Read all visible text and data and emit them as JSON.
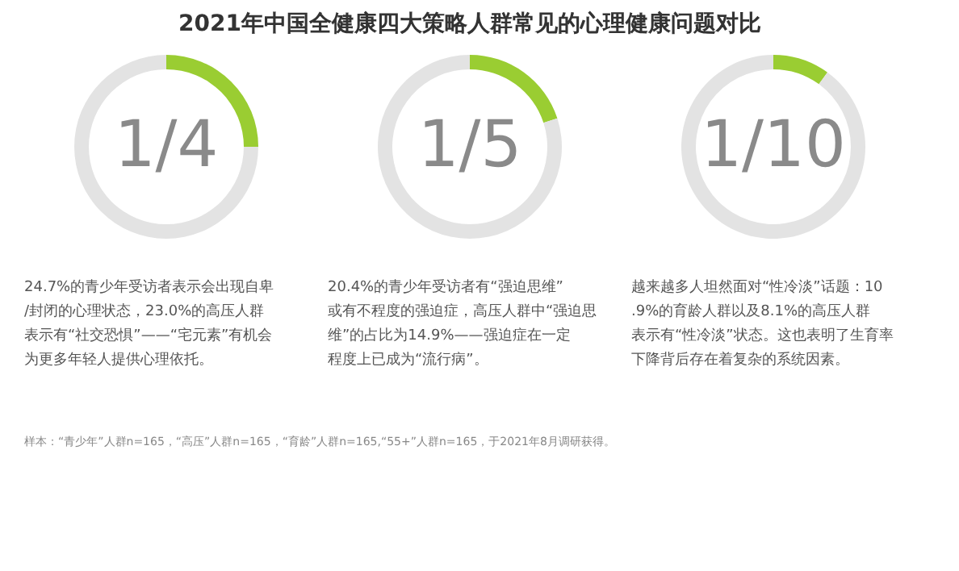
{
  "chart_data": [
    {
      "type": "donut",
      "title": "2021年中国全健康四大策略人群常见的心理健康问题对比",
      "categories": [
        null,
        null
      ],
      "values": [
        25,
        75
      ],
      "colors": [
        "#9acd32",
        "#e3e3e3"
      ],
      "annotations": [
        "1/4",
        "24.7%的青少年受访者表示会出现自卑/封闭的心理状态，23.0%的高压人群表示有“社交恐惧”——“宅元素”有机会为更多年轻人提供心理依托。",
        "样本：“青少年”人群n=165，“高压”人群n=165，“育龄”人群n=165,“55+”人群n=165，于2021年8月调研获得。"
      ]
    },
    {
      "type": "donut",
      "categories": [
        null,
        null
      ],
      "values": [
        20,
        80
      ],
      "colors": [
        "#9acd32",
        "#e3e3e3"
      ],
      "annotations": [
        "1/5",
        "20.4%的青少年受访者有“强迫思维”或有不程度的强迫症，高压人群中“强迫思维”的占比为14.9%——强迫症在一定程度上已成为“流行病”。"
      ]
    },
    {
      "type": "donut",
      "categories": [
        null,
        null
      ],
      "values": [
        10,
        90
      ],
      "colors": [
        "#9acd32",
        "#e3e3e3"
      ],
      "annotations": [
        "1/10",
        "越来越多人坦然面对“性冷淡”话题：10.9%的育龄人群以及8.1%的高压人群表示有“性冷淡”状态。这也表明了生育率下降背后存在着复杂的系统因素。"
      ]
    }
  ]
}
